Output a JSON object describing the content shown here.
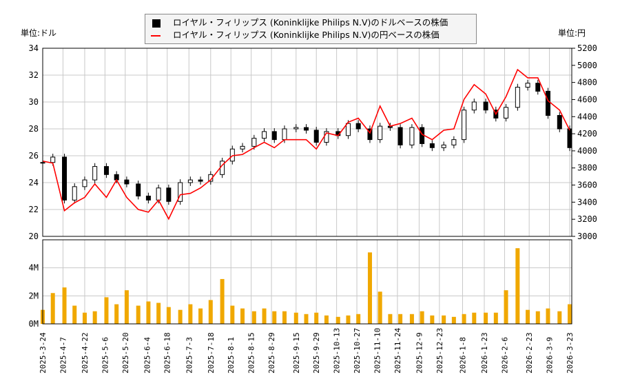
{
  "legend": {
    "usd_label": "ロイヤル・フィリップス (Koninklijke Philips N.V)のドルベースの株価",
    "jpy_label": "ロイヤル・フィリップス (Koninklijke Philips N.V)の円ベースの株価"
  },
  "units": {
    "left": "単位:ドル",
    "right": "単位:円"
  },
  "colors": {
    "usd_candle": "#000000",
    "jpy_line": "#ff0000",
    "volume": "#f0a800",
    "grid": "#c8c8c8"
  },
  "chart_data": [
    {
      "type": "candlestick+line",
      "x_ticks": [
        "2025-3-24",
        "2025-4-7",
        "2025-4-22",
        "2025-5-6",
        "2025-5-20",
        "2025-6-4",
        "2025-6-18",
        "2025-7-3",
        "2025-7-18",
        "2025-8-1",
        "2025-8-15",
        "2025-8-29",
        "2025-9-15",
        "2025-9-29",
        "2025-10-13",
        "2025-10-27",
        "2025-11-10",
        "2025-11-24",
        "2025-12-9",
        "2025-12-23",
        "2026-1-8",
        "2026-1-23",
        "2026-2-6",
        "2026-2-23",
        "2026-3-9",
        "2026-3-23"
      ],
      "y_left": {
        "ticks": [
          20,
          22,
          24,
          26,
          28,
          30,
          32,
          34
        ],
        "range": [
          20,
          34
        ]
      },
      "y_right": {
        "ticks": [
          3000,
          3200,
          3400,
          3600,
          3800,
          4000,
          4200,
          4400,
          4600,
          4800,
          5000,
          5200
        ],
        "range": [
          3000,
          5200
        ]
      },
      "grid": true,
      "dates": [
        "2025-03-24",
        "2025-03-31",
        "2025-04-08",
        "2025-04-15",
        "2025-04-22",
        "2025-04-29",
        "2025-05-07",
        "2025-05-14",
        "2025-05-21",
        "2025-05-29",
        "2025-06-05",
        "2025-06-12",
        "2025-06-19",
        "2025-06-27",
        "2025-07-04",
        "2025-07-11",
        "2025-07-18",
        "2025-07-26",
        "2025-08-02",
        "2025-08-09",
        "2025-08-17",
        "2025-08-24",
        "2025-08-31",
        "2025-09-07",
        "2025-09-15",
        "2025-09-22",
        "2025-09-29",
        "2025-10-06",
        "2025-10-14",
        "2025-10-21",
        "2025-10-28",
        "2025-11-05",
        "2025-11-12",
        "2025-11-19",
        "2025-11-26",
        "2025-12-04",
        "2025-12-11",
        "2025-12-18",
        "2025-12-26",
        "2026-01-02",
        "2026-01-09",
        "2026-01-16",
        "2026-01-24",
        "2026-01-31",
        "2026-02-07",
        "2026-02-15",
        "2026-02-22",
        "2026-03-01",
        "2026-03-08",
        "2026-03-16",
        "2026-03-23"
      ],
      "usd_close": [
        25.5,
        25.9,
        22.7,
        23.7,
        24.2,
        25.2,
        24.6,
        24.2,
        23.9,
        23.0,
        22.7,
        23.6,
        22.6,
        24.0,
        24.2,
        24.1,
        24.6,
        25.6,
        26.5,
        26.7,
        27.3,
        27.8,
        27.2,
        28.0,
        28.1,
        27.9,
        27.0,
        27.8,
        27.5,
        28.4,
        28.0,
        27.2,
        28.2,
        28.1,
        26.8,
        28.1,
        26.9,
        26.6,
        26.8,
        27.2,
        29.4,
        30.0,
        29.4,
        28.8,
        29.6,
        31.1,
        31.4,
        30.8,
        29.0,
        28.0,
        26.6
      ],
      "jpy_close": [
        3880,
        3856,
        3300,
        3393,
        3456,
        3613,
        3456,
        3660,
        3456,
        3314,
        3283,
        3424,
        3204,
        3487,
        3503,
        3566,
        3660,
        3833,
        3943,
        3958,
        4037,
        4100,
        4037,
        4131,
        4131,
        4131,
        4021,
        4210,
        4178,
        4335,
        4382,
        4210,
        4524,
        4288,
        4320,
        4382,
        4194,
        4131,
        4241,
        4257,
        4602,
        4775,
        4665,
        4430,
        4634,
        4950,
        4854,
        4854,
        4587,
        4477,
        4241
      ]
    },
    {
      "type": "bar",
      "y_ticks": [
        "0M",
        "2M",
        "4M"
      ],
      "ylim": [
        0,
        6
      ],
      "volume_millions": [
        1.0,
        2.2,
        2.6,
        1.3,
        0.8,
        0.9,
        1.9,
        1.4,
        2.4,
        1.3,
        1.6,
        1.5,
        1.2,
        1.0,
        1.4,
        1.1,
        1.7,
        3.2,
        1.3,
        1.1,
        0.9,
        1.1,
        0.9,
        0.9,
        0.8,
        0.7,
        0.8,
        0.6,
        0.5,
        0.6,
        0.7,
        5.1,
        2.3,
        0.7,
        0.7,
        0.7,
        0.9,
        0.6,
        0.6,
        0.5,
        0.7,
        0.8,
        0.8,
        0.8,
        2.4,
        5.4,
        1.0,
        0.9,
        1.1,
        0.9,
        1.4
      ]
    }
  ]
}
